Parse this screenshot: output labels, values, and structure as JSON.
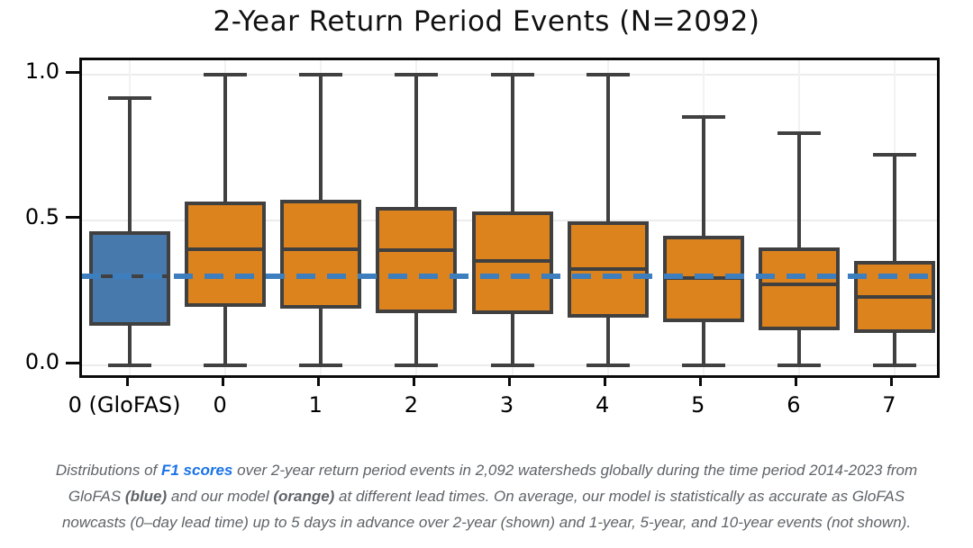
{
  "title": "2-Year Return Period Events (N=2092)",
  "colors": {
    "glofas_blue_fill": "#4879AC",
    "model_orange_fill": "#DC831E",
    "box_edge": "#404040",
    "dashed_reference_blue": "#3D7EBE",
    "grid_gray": "#ECECEC",
    "axis_black": "#0A0A0A",
    "caption_gray": "#5F6368",
    "link_blue": "#1A73E8"
  },
  "chart_data": {
    "type": "boxplot",
    "title": "2-Year Return Period Events (N=2092)",
    "categories": [
      "0 (GloFAS)",
      "0",
      "1",
      "2",
      "3",
      "4",
      "5",
      "6",
      "7"
    ],
    "xlabel": "",
    "ylabel": "",
    "ylim": [
      -0.05,
      1.05
    ],
    "ytick_values": [
      0.0,
      0.5,
      1.0
    ],
    "ytick_labels": [
      "0.0",
      "0.5",
      "1.0"
    ],
    "grid": true,
    "legend": "none",
    "reference_line": {
      "value": 0.305,
      "style": "dashed",
      "color": "#3D7EBE",
      "meaning": "GloFAS 0-day median F1"
    },
    "boxes": [
      {
        "label": "0 (GloFAS)",
        "group": "glofas",
        "fill": "#4879AC",
        "whisker_low": 0.0,
        "q1": 0.135,
        "median": 0.305,
        "q3": 0.46,
        "whisker_high": 0.92
      },
      {
        "label": "0",
        "group": "model",
        "fill": "#DC831E",
        "whisker_low": 0.0,
        "q1": 0.2,
        "median": 0.4,
        "q3": 0.565,
        "whisker_high": 1.0
      },
      {
        "label": "1",
        "group": "model",
        "fill": "#DC831E",
        "whisker_low": 0.0,
        "q1": 0.195,
        "median": 0.4,
        "q3": 0.57,
        "whisker_high": 1.0
      },
      {
        "label": "2",
        "group": "model",
        "fill": "#DC831E",
        "whisker_low": 0.0,
        "q1": 0.18,
        "median": 0.395,
        "q3": 0.545,
        "whisker_high": 1.0
      },
      {
        "label": "3",
        "group": "model",
        "fill": "#DC831E",
        "whisker_low": 0.0,
        "q1": 0.175,
        "median": 0.36,
        "q3": 0.53,
        "whisker_high": 1.0
      },
      {
        "label": "4",
        "group": "model",
        "fill": "#DC831E",
        "whisker_low": 0.0,
        "q1": 0.165,
        "median": 0.33,
        "q3": 0.495,
        "whisker_high": 1.0
      },
      {
        "label": "5",
        "group": "model",
        "fill": "#DC831E",
        "whisker_low": 0.0,
        "q1": 0.15,
        "median": 0.3,
        "q3": 0.445,
        "whisker_high": 0.855
      },
      {
        "label": "6",
        "group": "model",
        "fill": "#DC831E",
        "whisker_low": 0.0,
        "q1": 0.12,
        "median": 0.28,
        "q3": 0.405,
        "whisker_high": 0.8
      },
      {
        "label": "7",
        "group": "model",
        "fill": "#DC831E",
        "whisker_low": 0.0,
        "q1": 0.11,
        "median": 0.235,
        "q3": 0.36,
        "whisker_high": 0.725
      }
    ]
  },
  "caption": {
    "part1": "Distributions of ",
    "link_text": "F1 scores",
    "part2": " over 2-year return period events in 2,092 watersheds globally during the time period 2014-2023 from GloFAS ",
    "bold1": "(blue)",
    "part3": " and our model ",
    "bold2": "(orange)",
    "part4": " at different lead times. On average, our model is statistically as accurate as GloFAS nowcasts (0–day lead time) up to 5 days in advance over 2-year (shown) and 1-year, 5-year, and 10-year events (not shown)."
  }
}
